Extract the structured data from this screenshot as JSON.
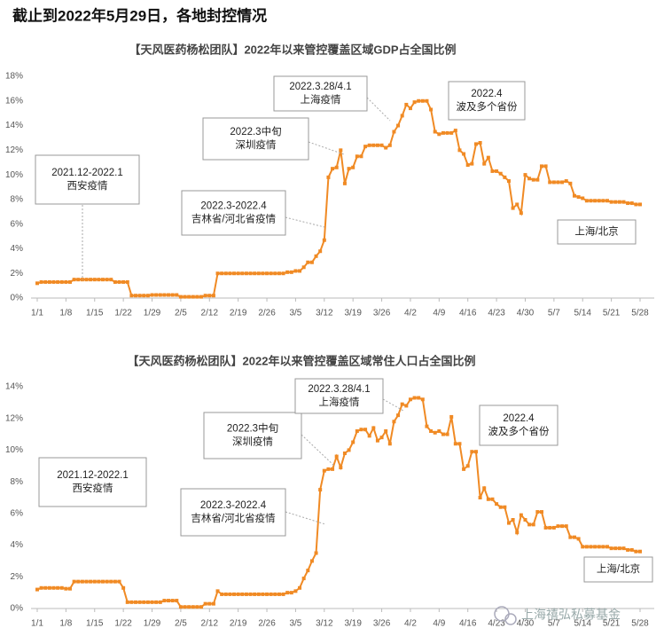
{
  "page_title": "截止到2022年5月29日，各地封控情况",
  "watermark": "上海禧弘私募基金",
  "chart_data": [
    {
      "type": "line",
      "title": "【天风医药杨松团队】2022年以来管控覆盖区域GDP占全国比例",
      "color": "#f08a24",
      "grid": false,
      "categories": [
        "1/1",
        null,
        null,
        null,
        null,
        null,
        null,
        "1/8",
        null,
        null,
        null,
        null,
        null,
        null,
        "1/15",
        null,
        null,
        null,
        null,
        null,
        null,
        "1/22",
        null,
        null,
        null,
        null,
        null,
        null,
        "1/29",
        null,
        null,
        null,
        null,
        null,
        null,
        "2/5",
        null,
        null,
        null,
        null,
        null,
        null,
        "2/12",
        null,
        null,
        null,
        null,
        null,
        null,
        "2/19",
        null,
        null,
        null,
        null,
        null,
        null,
        "2/26",
        null,
        null,
        null,
        null,
        null,
        null,
        "3/5",
        null,
        null,
        null,
        null,
        null,
        null,
        "3/12",
        null,
        null,
        null,
        null,
        null,
        null,
        "3/19",
        null,
        null,
        null,
        null,
        null,
        null,
        "3/26",
        null,
        null,
        null,
        null,
        null,
        null,
        "4/2",
        null,
        null,
        null,
        null,
        null,
        null,
        "4/9",
        null,
        null,
        null,
        null,
        null,
        null,
        "4/16",
        null,
        null,
        null,
        null,
        null,
        null,
        "4/23",
        null,
        null,
        null,
        null,
        null,
        null,
        "4/30",
        null,
        null,
        null,
        null,
        null,
        null,
        "5/7",
        null,
        null,
        null,
        null,
        null,
        null,
        "5/14",
        null,
        null,
        null,
        null,
        null,
        null,
        "5/21",
        null,
        null,
        null,
        null,
        null,
        null,
        "5/28"
      ],
      "values": [
        1.2,
        1.3,
        1.3,
        1.3,
        1.3,
        1.3,
        1.3,
        1.3,
        1.3,
        1.5,
        1.5,
        1.5,
        1.5,
        1.5,
        1.5,
        1.5,
        1.5,
        1.5,
        1.5,
        1.3,
        1.3,
        1.3,
        1.3,
        0.2,
        0.2,
        0.2,
        0.2,
        0.2,
        0.25,
        0.25,
        0.25,
        0.25,
        0.25,
        0.25,
        0.25,
        0.1,
        0.1,
        0.1,
        0.1,
        0.1,
        0.1,
        0.2,
        0.2,
        0.2,
        2.0,
        2.0,
        2.0,
        2.0,
        2.0,
        2.0,
        2.0,
        2.0,
        2.0,
        2.0,
        2.0,
        2.0,
        2.0,
        2.0,
        2.0,
        2.0,
        2.0,
        2.1,
        2.1,
        2.2,
        2.2,
        2.5,
        2.9,
        2.9,
        3.4,
        3.8,
        4.7,
        9.8,
        10.5,
        10.6,
        12.0,
        9.3,
        10.5,
        10.6,
        11.5,
        11.5,
        12.3,
        12.4,
        12.4,
        12.4,
        12.4,
        12.2,
        12.4,
        13.5,
        14.0,
        14.8,
        15.7,
        15.4,
        15.9,
        16.0,
        16.0,
        16.0,
        15.3,
        13.5,
        13.3,
        13.4,
        13.4,
        13.4,
        13.6,
        12.0,
        11.7,
        10.8,
        10.9,
        12.5,
        12.6,
        10.9,
        11.4,
        10.3,
        10.3,
        10.1,
        9.8,
        9.5,
        7.3,
        7.6,
        6.9,
        10.0,
        9.7,
        9.6,
        9.6,
        10.7,
        10.7,
        9.4,
        9.4,
        9.4,
        9.4,
        9.5,
        9.3,
        8.3,
        8.2,
        8.1,
        7.9,
        7.9,
        7.9,
        7.9,
        7.9,
        7.9,
        7.8,
        7.8,
        7.8,
        7.8,
        7.7,
        7.7,
        7.6,
        7.6
      ],
      "ylim": [
        0,
        18
      ],
      "yticks": [
        {
          "value": 0,
          "label": "0%"
        },
        {
          "value": 2,
          "label": "2%"
        },
        {
          "value": 4,
          "label": "4%"
        },
        {
          "value": 6,
          "label": "6%"
        },
        {
          "value": 8,
          "label": "8%"
        },
        {
          "value": 10,
          "label": "10%"
        },
        {
          "value": 12,
          "label": "12%"
        },
        {
          "value": 14,
          "label": "14%"
        },
        {
          "value": 16,
          "label": "16%"
        },
        {
          "value": 18,
          "label": "18%"
        }
      ],
      "annotations": [
        {
          "lines": [
            "2021.12-2022.1",
            "西安疫情"
          ]
        },
        {
          "lines": [
            "2022.3-2022.4",
            "吉林省/河北省疫情"
          ]
        },
        {
          "lines": [
            "2022.3中旬",
            "深圳疫情"
          ]
        },
        {
          "lines": [
            "2022.3.28/4.1",
            "上海疫情"
          ]
        },
        {
          "lines": [
            "2022.4",
            "波及多个省份"
          ]
        },
        {
          "lines": [
            "上海/北京"
          ]
        }
      ]
    },
    {
      "type": "line",
      "title": "【天风医药杨松团队】2022年以来管控覆盖区域常住人口占全国比例",
      "color": "#f08a24",
      "grid": false,
      "categories": [
        "1/1",
        null,
        null,
        null,
        null,
        null,
        null,
        "1/8",
        null,
        null,
        null,
        null,
        null,
        null,
        "1/15",
        null,
        null,
        null,
        null,
        null,
        null,
        "1/22",
        null,
        null,
        null,
        null,
        null,
        null,
        "1/29",
        null,
        null,
        null,
        null,
        null,
        null,
        "2/5",
        null,
        null,
        null,
        null,
        null,
        null,
        "2/12",
        null,
        null,
        null,
        null,
        null,
        null,
        "2/19",
        null,
        null,
        null,
        null,
        null,
        null,
        "2/26",
        null,
        null,
        null,
        null,
        null,
        null,
        "3/5",
        null,
        null,
        null,
        null,
        null,
        null,
        "3/12",
        null,
        null,
        null,
        null,
        null,
        null,
        "3/19",
        null,
        null,
        null,
        null,
        null,
        null,
        "3/26",
        null,
        null,
        null,
        null,
        null,
        null,
        "4/2",
        null,
        null,
        null,
        null,
        null,
        null,
        "4/9",
        null,
        null,
        null,
        null,
        null,
        null,
        "4/16",
        null,
        null,
        null,
        null,
        null,
        null,
        "4/23",
        null,
        null,
        null,
        null,
        null,
        null,
        "4/30",
        null,
        null,
        null,
        null,
        null,
        null,
        "5/7",
        null,
        null,
        null,
        null,
        null,
        null,
        "5/14",
        null,
        null,
        null,
        null,
        null,
        null,
        "5/21",
        null,
        null,
        null,
        null,
        null,
        null,
        "5/28"
      ],
      "values": [
        1.2,
        1.3,
        1.3,
        1.3,
        1.3,
        1.3,
        1.3,
        1.25,
        1.25,
        1.7,
        1.7,
        1.7,
        1.7,
        1.7,
        1.7,
        1.7,
        1.7,
        1.7,
        1.7,
        1.7,
        1.7,
        1.3,
        0.4,
        0.4,
        0.4,
        0.4,
        0.4,
        0.4,
        0.4,
        0.4,
        0.4,
        0.5,
        0.5,
        0.5,
        0.5,
        0.1,
        0.1,
        0.1,
        0.1,
        0.1,
        0.1,
        0.3,
        0.3,
        0.3,
        1.1,
        0.9,
        0.9,
        0.9,
        0.9,
        0.9,
        0.9,
        0.9,
        0.9,
        0.9,
        0.9,
        0.9,
        0.9,
        0.9,
        0.9,
        0.9,
        0.9,
        1.0,
        1.0,
        1.1,
        1.3,
        1.9,
        2.4,
        3.0,
        3.5,
        7.5,
        8.7,
        8.8,
        8.8,
        9.6,
        8.9,
        9.8,
        10.0,
        10.5,
        11.2,
        11.3,
        11.3,
        10.9,
        11.4,
        10.6,
        10.8,
        11.2,
        10.4,
        11.8,
        12.2,
        12.9,
        12.8,
        13.2,
        13.3,
        13.3,
        13.2,
        11.5,
        11.2,
        11.1,
        11.2,
        11.0,
        11.0,
        12.1,
        10.4,
        10.4,
        8.8,
        9.0,
        9.9,
        9.9,
        7.0,
        7.6,
        6.9,
        6.9,
        6.6,
        6.4,
        6.4,
        5.4,
        5.6,
        4.8,
        5.9,
        5.6,
        5.3,
        5.3,
        6.1,
        6.1,
        5.1,
        5.1,
        5.1,
        5.2,
        5.2,
        5.2,
        4.5,
        4.5,
        4.4,
        3.9,
        3.9,
        3.9,
        3.9,
        3.9,
        3.9,
        3.9,
        3.8,
        3.8,
        3.8,
        3.8,
        3.7,
        3.7,
        3.6,
        3.6
      ],
      "ylim": [
        0,
        14
      ],
      "yticks": [
        {
          "value": 0,
          "label": "0%"
        },
        {
          "value": 2,
          "label": "2%"
        },
        {
          "value": 4,
          "label": "4%"
        },
        {
          "value": 6,
          "label": "6%"
        },
        {
          "value": 8,
          "label": "8%"
        },
        {
          "value": 10,
          "label": "10%"
        },
        {
          "value": 12,
          "label": "12%"
        },
        {
          "value": 14,
          "label": "14%"
        }
      ],
      "annotations": [
        {
          "lines": [
            "2021.12-2022.1",
            "西安疫情"
          ]
        },
        {
          "lines": [
            "2022.3-2022.4",
            "吉林省/河北省疫情"
          ]
        },
        {
          "lines": [
            "2022.3中旬",
            "深圳疫情"
          ]
        },
        {
          "lines": [
            "2022.3.28/4.1",
            "上海疫情"
          ]
        },
        {
          "lines": [
            "2022.4",
            "波及多个省份"
          ]
        },
        {
          "lines": [
            "上海/北京"
          ]
        }
      ]
    }
  ]
}
